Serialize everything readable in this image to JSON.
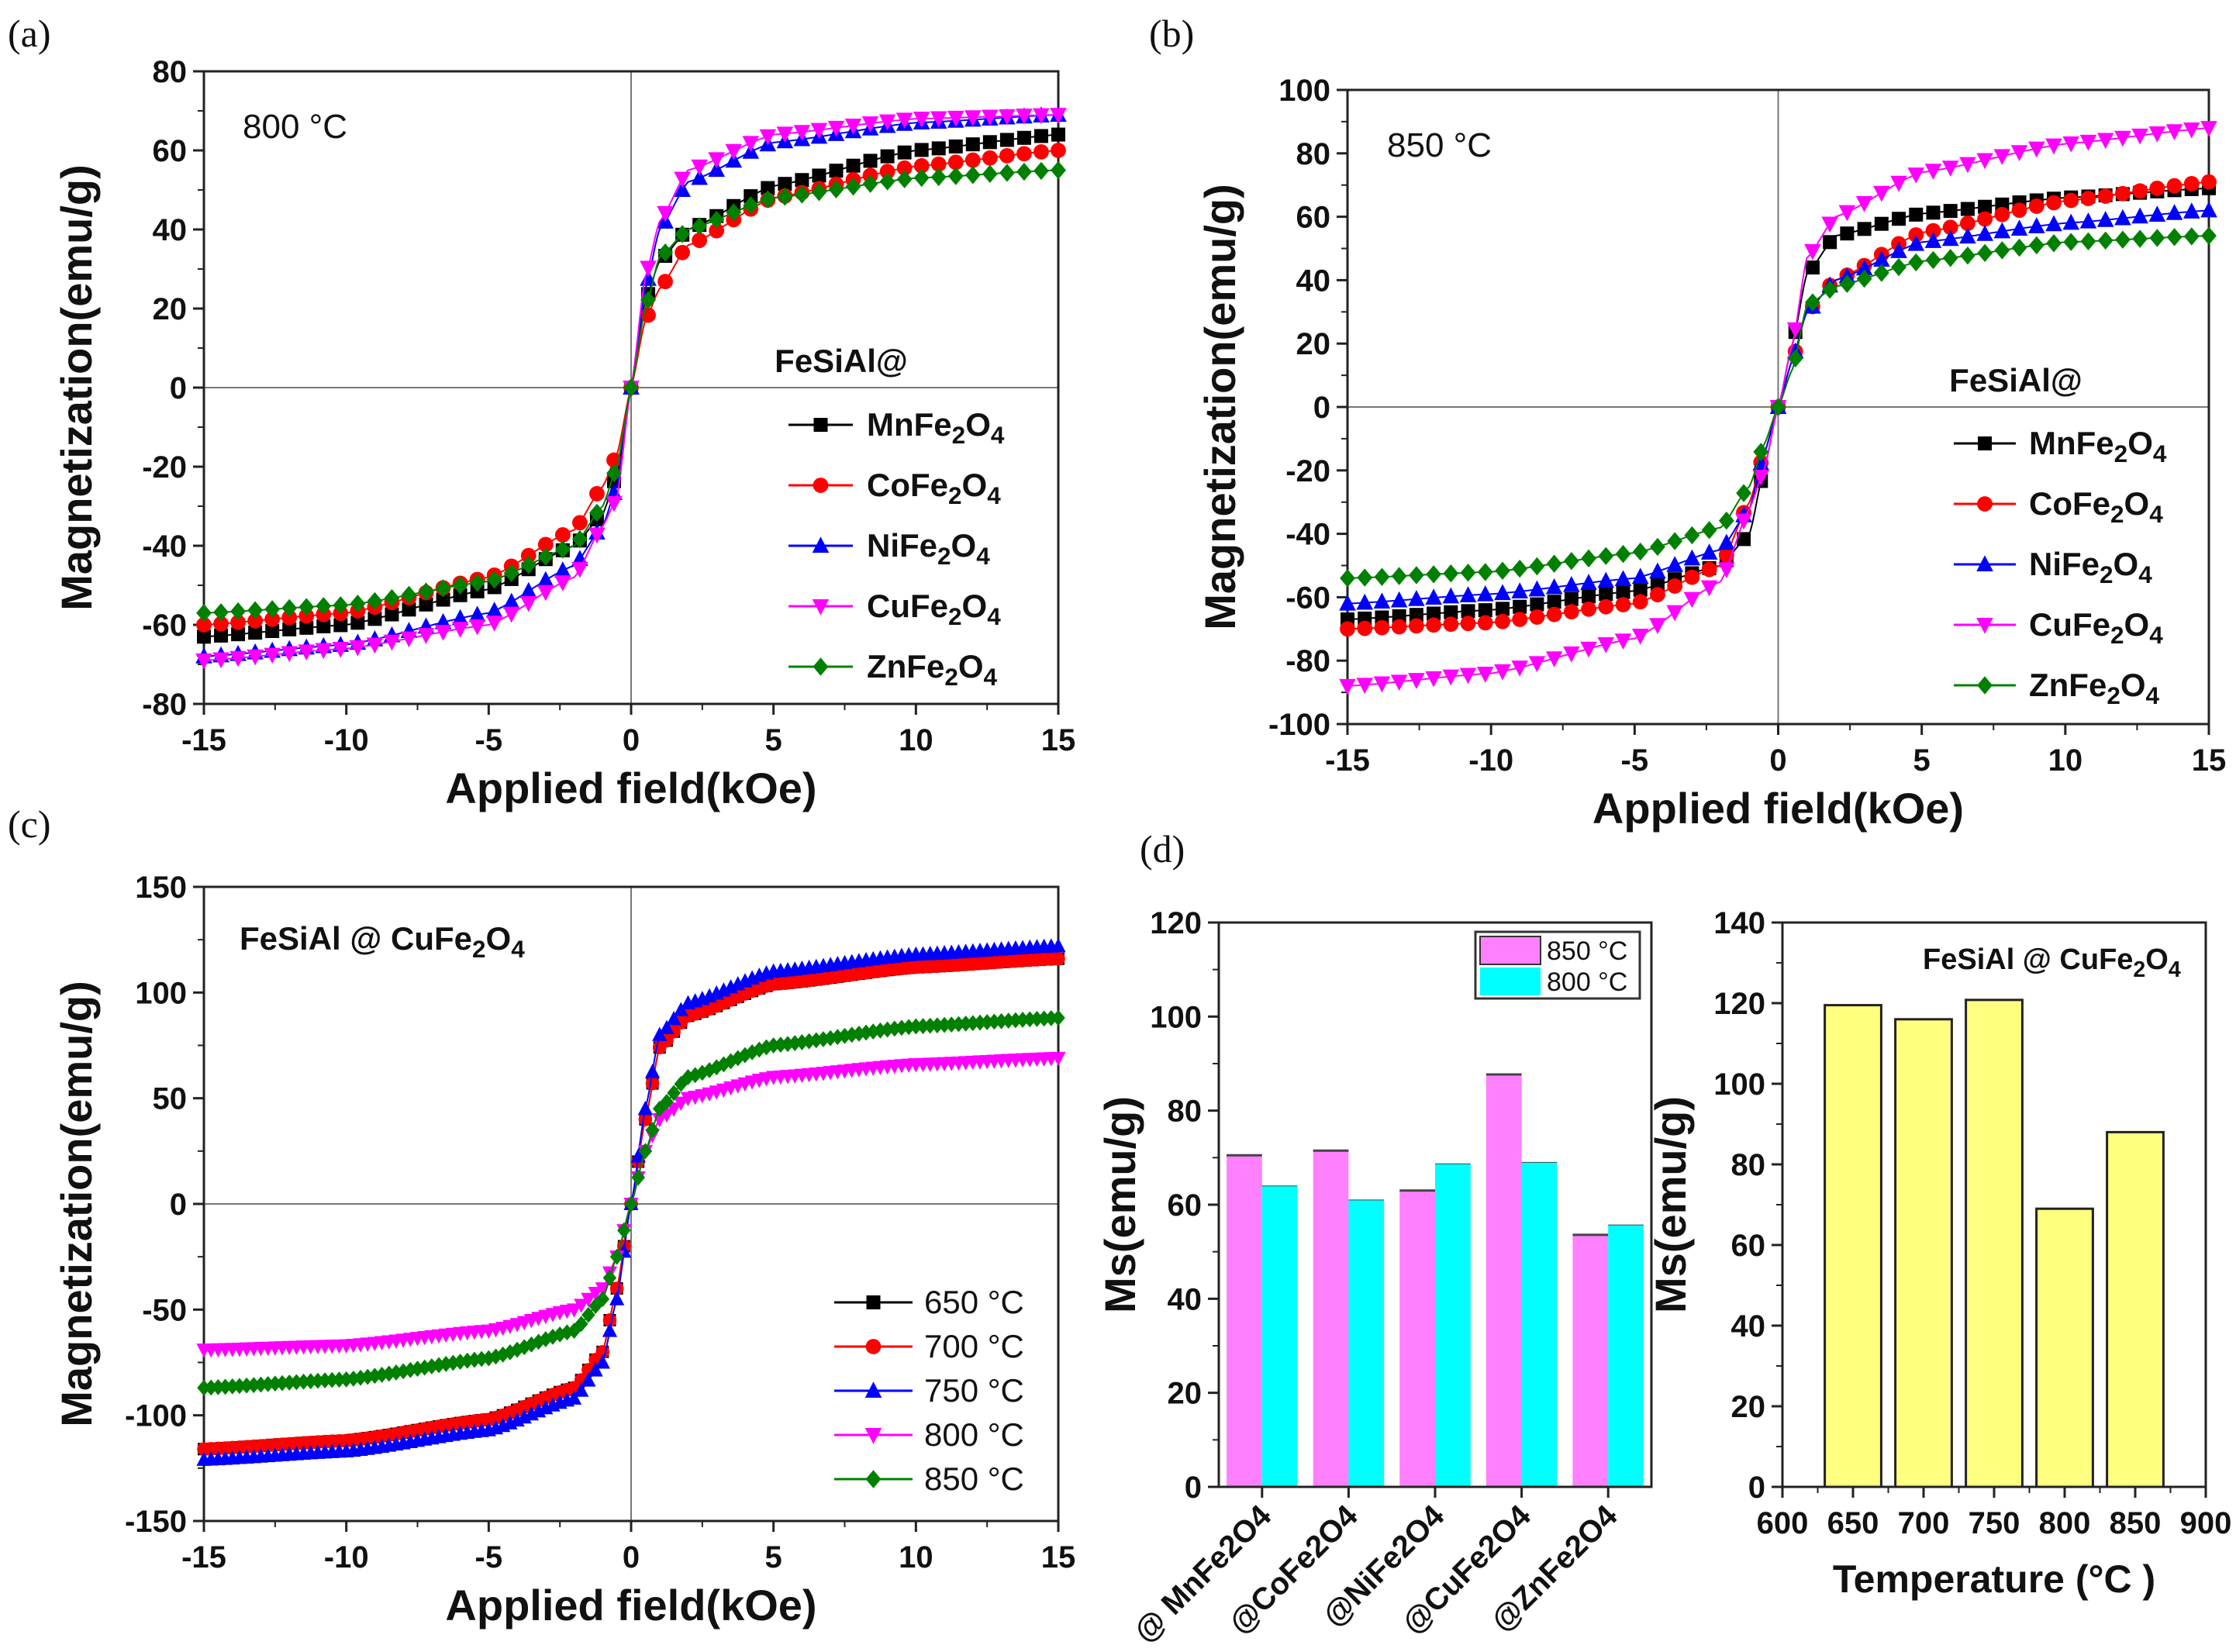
{
  "chart_data": [
    {
      "type": "line",
      "panel_label": "(a)",
      "annotation": "800 °C",
      "legend_title": "FeSiAl@",
      "xlabel": "Applied field(kOe)",
      "ylabel": "Magnetization(emu/g)",
      "xlim": [
        -15,
        15
      ],
      "ylim": [
        -80,
        80
      ],
      "xticks": [
        -15,
        -10,
        -5,
        0,
        5,
        10,
        15
      ],
      "yticks": [
        -80,
        -60,
        -40,
        -20,
        0,
        20,
        40,
        60,
        80
      ],
      "x": [
        -15,
        -10,
        -5,
        -2,
        -1,
        -0.5,
        0,
        0.5,
        1,
        2,
        5,
        10,
        15
      ],
      "series": [
        {
          "name": "MnFe2O4",
          "color": "#000000",
          "marker": "square",
          "y": [
            -63,
            -60,
            -51,
            -40,
            -32,
            -22,
            0,
            22,
            32,
            40,
            51,
            60,
            64
          ]
        },
        {
          "name": "CoFe2O4",
          "color": "#ff0000",
          "marker": "circle",
          "y": [
            -60,
            -57,
            -48,
            -36,
            -25,
            -17,
            0,
            17,
            25,
            36,
            48,
            56,
            60
          ]
        },
        {
          "name": "NiFe2O4",
          "color": "#0000ff",
          "marker": "triangle-up",
          "y": [
            -68,
            -65,
            -57,
            -45,
            -35,
            -25,
            0,
            25,
            40,
            52,
            62,
            67,
            69
          ]
        },
        {
          "name": "CuFe2O4",
          "color": "#ff00ff",
          "marker": "triangle-down",
          "y": [
            -69,
            -66,
            -60,
            -48,
            -35,
            -28,
            0,
            28,
            42,
            55,
            64,
            68,
            69
          ]
        },
        {
          "name": "ZnFe2O4",
          "color": "#008000",
          "marker": "diamond",
          "y": [
            -57,
            -55,
            -49,
            -40,
            -30,
            -20,
            0,
            20,
            33,
            40,
            48,
            53,
            55
          ]
        }
      ]
    },
    {
      "type": "line",
      "panel_label": "(b)",
      "annotation": "850 °C",
      "legend_title": "FeSiAl@",
      "xlabel": "Applied field(kOe)",
      "ylabel": "Magnetization(emu/g)",
      "xlim": [
        -15,
        15
      ],
      "ylim": [
        -100,
        100
      ],
      "xticks": [
        -15,
        -10,
        -5,
        0,
        5,
        10,
        15
      ],
      "yticks": [
        -100,
        -80,
        -60,
        -40,
        -20,
        0,
        20,
        40,
        60,
        80,
        100
      ],
      "x": [
        -15,
        -10,
        -5,
        -2,
        -1,
        -0.5,
        0,
        0.5,
        1,
        2,
        5,
        10,
        15
      ],
      "series": [
        {
          "name": "MnFe2O4",
          "color": "#000000",
          "marker": "square",
          "y": [
            -67,
            -64,
            -58,
            -50,
            -40,
            -20,
            0,
            20,
            42,
            54,
            61,
            66,
            69
          ]
        },
        {
          "name": "CoFe2O4",
          "color": "#ff0000",
          "marker": "circle",
          "y": [
            -70,
            -68,
            -62,
            -50,
            -30,
            -15,
            0,
            15,
            30,
            40,
            55,
            65,
            71
          ]
        },
        {
          "name": "NiFe2O4",
          "color": "#0000ff",
          "marker": "triangle-up",
          "y": [
            -62,
            -59,
            -54,
            -45,
            -32,
            -15,
            0,
            15,
            30,
            40,
            52,
            58,
            62
          ]
        },
        {
          "name": "CuFe2O4",
          "color": "#ff00ff",
          "marker": "triangle-down",
          "y": [
            -88,
            -84,
            -73,
            -55,
            -32,
            -20,
            0,
            20,
            47,
            60,
            74,
            83,
            88
          ]
        },
        {
          "name": "ZnFe2O4",
          "color": "#008000",
          "marker": "diamond",
          "y": [
            -54,
            -52,
            -46,
            -38,
            -25,
            -12,
            0,
            12,
            32,
            38,
            46,
            52,
            54
          ]
        }
      ]
    },
    {
      "type": "line",
      "panel_label": "(c)",
      "annotation": "FeSiAl @ CuFe2O4",
      "xlabel": "Applied field(kOe)",
      "ylabel": "Magnetization(emu/g)",
      "xlim": [
        -15,
        15
      ],
      "ylim": [
        -150,
        150
      ],
      "xticks": [
        -15,
        -10,
        -5,
        0,
        5,
        10,
        15
      ],
      "yticks": [
        -150,
        -100,
        -50,
        0,
        50,
        100,
        150
      ],
      "x": [
        -15,
        -10,
        -5,
        -2,
        -1,
        -0.5,
        0,
        0.5,
        1,
        2,
        5,
        10,
        15
      ],
      "series": [
        {
          "name": "650 °C",
          "color": "#000000",
          "marker": "square",
          "y": [
            -116,
            -112,
            -102,
            -87,
            -70,
            -40,
            0,
            40,
            74,
            89,
            104,
            112,
            116
          ]
        },
        {
          "name": "700 °C",
          "color": "#ff0000",
          "marker": "circle",
          "y": [
            -116,
            -112,
            -102,
            -87,
            -70,
            -40,
            0,
            40,
            74,
            89,
            104,
            112,
            116
          ]
        },
        {
          "name": "750 °C",
          "color": "#0000ff",
          "marker": "triangle-up",
          "y": [
            -121,
            -117,
            -107,
            -92,
            -75,
            -45,
            0,
            45,
            80,
            95,
            110,
            118,
            122
          ]
        },
        {
          "name": "800 °C",
          "color": "#ff00ff",
          "marker": "triangle-down",
          "y": [
            -69,
            -67,
            -60,
            -50,
            -40,
            -25,
            0,
            25,
            40,
            50,
            60,
            66,
            69
          ]
        },
        {
          "name": "850 °C",
          "color": "#008000",
          "marker": "diamond",
          "y": [
            -87,
            -83,
            -73,
            -60,
            -45,
            -25,
            0,
            25,
            45,
            60,
            75,
            84,
            88
          ]
        }
      ]
    },
    {
      "type": "bar",
      "panel_label": "(d)",
      "categories": [
        "@ MnFe2O4",
        "@CoFe2O4",
        "@NiFe2O4",
        "@CuFe2O4",
        "@ZnFe2O4"
      ],
      "ylabel": "Ms(emu/g)",
      "ylim": [
        0,
        120
      ],
      "yticks": [
        0,
        20,
        40,
        60,
        80,
        100,
        120
      ],
      "series": [
        {
          "name": "850 °C",
          "color": "#ff80ff",
          "values": [
            70.5,
            71.5,
            63,
            87.7,
            53.6
          ]
        },
        {
          "name": "800 °C",
          "color": "#00ffff",
          "values": [
            64,
            61,
            68.7,
            69,
            55.7
          ]
        }
      ]
    },
    {
      "type": "bar",
      "annotation": "FeSiAl @ CuFe2O4",
      "xlabel": "Temperature (°C )",
      "ylabel": "Ms(emu/g)",
      "xlim": [
        600,
        900
      ],
      "ylim": [
        0,
        140
      ],
      "xticks": [
        600,
        650,
        700,
        750,
        800,
        850,
        900
      ],
      "yticks": [
        0,
        20,
        40,
        60,
        80,
        100,
        120,
        140
      ],
      "x": [
        650,
        700,
        750,
        800,
        850
      ],
      "values": [
        119.5,
        116,
        120.8,
        69,
        88
      ],
      "color": "#ffff80"
    }
  ]
}
